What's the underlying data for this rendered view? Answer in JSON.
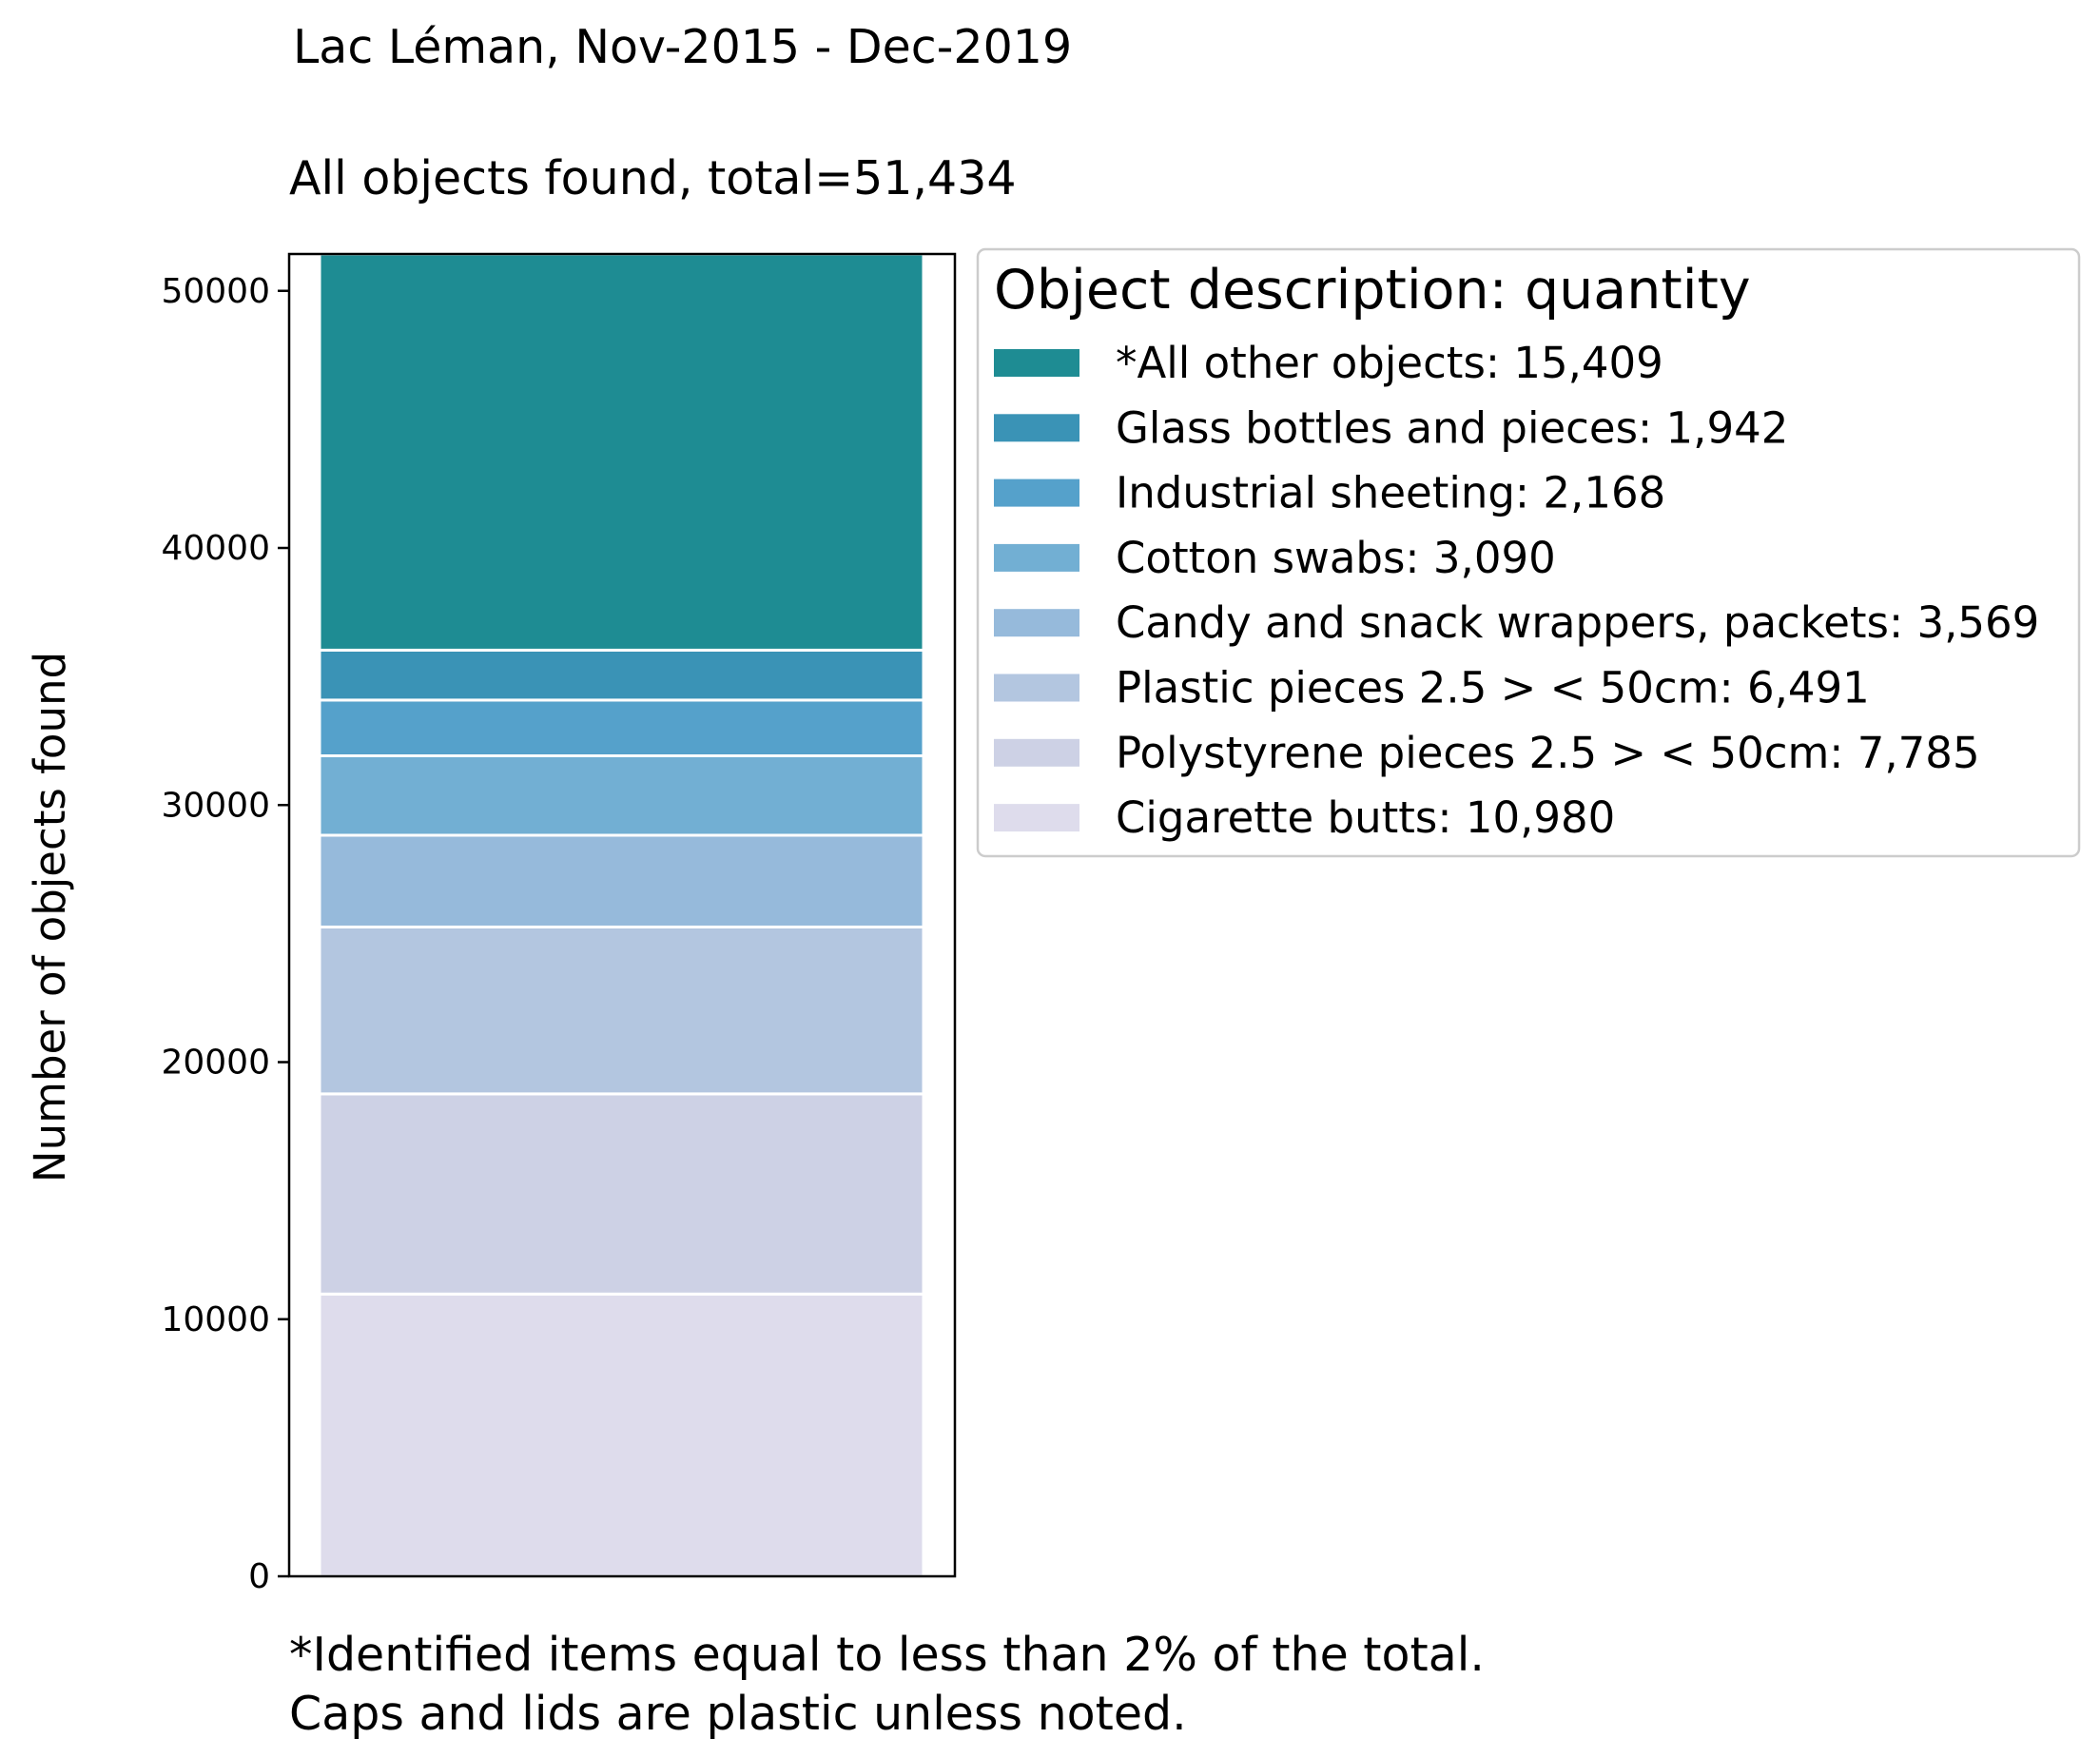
{
  "chart_data": {
    "type": "bar",
    "stacked": true,
    "suptitle": "Lac Léman, Nov-2015 - Dec-2019",
    "title": "All objects found,  total=51,434",
    "xlabel": "",
    "ylabel": "Number of objects found",
    "ylim": [
      0,
      51434
    ],
    "yticks": [
      0,
      10000,
      20000,
      30000,
      40000,
      50000
    ],
    "ytick_labels": [
      "0",
      "10000",
      "20000",
      "30000",
      "40000",
      "50000"
    ],
    "grid": false,
    "legend": {
      "title": "Object description: quantity",
      "placement": "upper-right-outside"
    },
    "series": [
      {
        "name": "Cigarette butts",
        "value": 10980,
        "label": "Cigarette butts: 10,980",
        "color": "#dedcec"
      },
      {
        "name": "Polystyrene pieces 2.5 > < 50cm",
        "value": 7785,
        "label": "Polystyrene pieces 2.5 > < 50cm: 7,785",
        "color": "#cdd1e5"
      },
      {
        "name": "Plastic pieces 2.5 > < 50cm",
        "value": 6491,
        "label": "Plastic pieces 2.5 > < 50cm: 6,491",
        "color": "#b3c6e0"
      },
      {
        "name": "Candy and snack wrappers, packets",
        "value": 3569,
        "label": "Candy and snack wrappers, packets: 3,569",
        "color": "#96badb"
      },
      {
        "name": "Cotton swabs",
        "value": 3090,
        "label": "Cotton swabs: 3,090",
        "color": "#72afd3"
      },
      {
        "name": "Industrial sheeting",
        "value": 2168,
        "label": "Industrial sheeting: 2,168",
        "color": "#55a1cb"
      },
      {
        "name": "Glass bottles and pieces",
        "value": 1942,
        "label": "Glass bottles and pieces: 1,942",
        "color": "#3a93b6"
      },
      {
        "name": "*All other objects",
        "value": 15409,
        "label": "*All other objects: 15,409",
        "color": "#1e8c93"
      }
    ],
    "caption": [
      "*Identified items equal to less than 2% of the total.",
      "Caps and lids are plastic unless noted."
    ]
  }
}
